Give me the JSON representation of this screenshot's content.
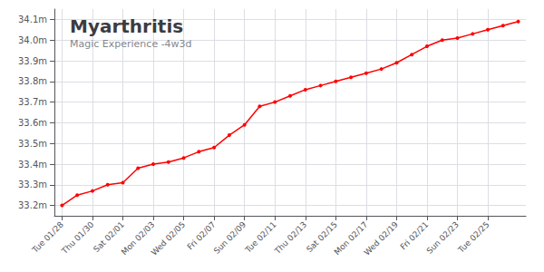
{
  "chart_data": {
    "type": "line",
    "title": "Myarthritis",
    "subtitle": "Magic Experience -4w3d",
    "x": [
      0,
      2,
      4,
      6,
      8,
      10,
      12,
      14,
      16,
      18,
      20,
      22,
      24,
      26,
      28,
      30,
      32,
      34,
      36,
      38,
      40,
      42,
      44,
      46,
      48,
      50,
      52,
      54,
      56,
      58,
      60
    ],
    "values": [
      33.2,
      33.25,
      33.27,
      33.3,
      33.31,
      33.38,
      33.4,
      33.41,
      33.43,
      33.46,
      33.48,
      33.54,
      33.59,
      33.68,
      33.7,
      33.73,
      33.76,
      33.78,
      33.8,
      33.82,
      33.84,
      33.86,
      33.89,
      33.93,
      33.97,
      34.0,
      34.01,
      34.03,
      34.05,
      34.07,
      34.09
    ],
    "color": "#ff0000",
    "marker": "circle",
    "xlim": [
      -1,
      61
    ],
    "xticks": [
      {
        "value": 0,
        "label": "Tue 01/28"
      },
      {
        "value": 4,
        "label": "Thu 01/30"
      },
      {
        "value": 8,
        "label": "Sat 02/01"
      },
      {
        "value": 12,
        "label": "Mon 02/03"
      },
      {
        "value": 16,
        "label": "Wed 02/05"
      },
      {
        "value": 20,
        "label": "Fri 02/07"
      },
      {
        "value": 24,
        "label": "Sun 02/09"
      },
      {
        "value": 28,
        "label": "Tue 02/11"
      },
      {
        "value": 32,
        "label": "Thu 02/13"
      },
      {
        "value": 36,
        "label": "Sat 02/15"
      },
      {
        "value": 40,
        "label": "Mon 02/17"
      },
      {
        "value": 44,
        "label": "Wed 02/19"
      },
      {
        "value": 48,
        "label": "Fri 02/21"
      },
      {
        "value": 52,
        "label": "Sun 02/23"
      },
      {
        "value": 56,
        "label": "Tue 02/25"
      }
    ],
    "ylim": [
      33.15,
      34.15
    ],
    "yticks": [
      {
        "value": 33.2,
        "label": "33.2m"
      },
      {
        "value": 33.3,
        "label": "33.3m"
      },
      {
        "value": 33.4,
        "label": "33.4m"
      },
      {
        "value": 33.5,
        "label": "33.5m"
      },
      {
        "value": 33.6,
        "label": "33.6m"
      },
      {
        "value": 33.7,
        "label": "33.7m"
      },
      {
        "value": 33.8,
        "label": "33.8m"
      },
      {
        "value": 33.9,
        "label": "33.9m"
      },
      {
        "value": 34.0,
        "label": "34.0m"
      },
      {
        "value": 34.1,
        "label": "34.1m"
      }
    ],
    "grid": true
  }
}
